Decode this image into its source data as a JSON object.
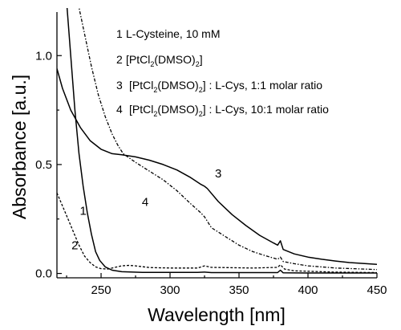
{
  "chart_data": {
    "type": "line",
    "xlabel": "Wavelength [nm]",
    "ylabel": "Absorbance [a.u.]",
    "xlim": [
      218,
      450
    ],
    "ylim": [
      -0.02,
      1.2
    ],
    "xticks": [
      "250",
      "300",
      "350",
      "400",
      "450"
    ],
    "yticks": [
      "0.0",
      "0.5",
      "1.0"
    ],
    "legend_position": "top-right",
    "legend": [
      {
        "num": "1",
        "text": "L-Cysteine, 10 mM"
      },
      {
        "num": "2",
        "prefix": "[PtCl",
        "sub": "2",
        "suffix": "(DMSO)",
        "sub2": "2",
        "tail": "]"
      },
      {
        "num": "3",
        "prefix": "[PtCl",
        "sub": "2",
        "suffix": "(DMSO)",
        "sub2": "2",
        "tail": "] : L-Cys, 1:1 molar ratio"
      },
      {
        "num": "4",
        "prefix": "[PtCl",
        "sub": "2",
        "suffix": "(DMSO)",
        "sub2": "2",
        "tail": "] : L-Cys, 10:1 molar ratio"
      }
    ],
    "series": [
      {
        "label": "1",
        "color": "#000000",
        "dash": "solid",
        "points": [
          [
            225,
            1.25
          ],
          [
            228,
            1.0
          ],
          [
            231,
            0.75
          ],
          [
            234,
            0.55
          ],
          [
            237,
            0.4
          ],
          [
            240,
            0.28
          ],
          [
            243,
            0.18
          ],
          [
            246,
            0.1
          ],
          [
            249,
            0.06
          ],
          [
            253,
            0.03
          ],
          [
            258,
            0.015
          ],
          [
            265,
            0.008
          ],
          [
            280,
            0.005
          ],
          [
            320,
            0.005
          ],
          [
            325,
            0.006
          ],
          [
            330,
            0.004
          ],
          [
            378,
            0.004
          ],
          [
            380,
            0.015
          ],
          [
            382,
            0.003
          ],
          [
            400,
            0.002
          ],
          [
            450,
            0.002
          ]
        ]
      },
      {
        "label": "2",
        "color": "#000000",
        "dash": "short",
        "points": [
          [
            218,
            0.37
          ],
          [
            222,
            0.31
          ],
          [
            226,
            0.25
          ],
          [
            230,
            0.19
          ],
          [
            234,
            0.13
          ],
          [
            238,
            0.08
          ],
          [
            242,
            0.05
          ],
          [
            246,
            0.03
          ],
          [
            250,
            0.022
          ],
          [
            255,
            0.02
          ],
          [
            260,
            0.028
          ],
          [
            265,
            0.035
          ],
          [
            270,
            0.037
          ],
          [
            275,
            0.035
          ],
          [
            285,
            0.027
          ],
          [
            300,
            0.025
          ],
          [
            320,
            0.025
          ],
          [
            325,
            0.035
          ],
          [
            330,
            0.028
          ],
          [
            360,
            0.025
          ],
          [
            378,
            0.028
          ],
          [
            380,
            0.04
          ],
          [
            383,
            0.02
          ],
          [
            390,
            0.012
          ],
          [
            420,
            0.006
          ],
          [
            450,
            0.004
          ]
        ]
      },
      {
        "label": "3",
        "color": "#000000",
        "dash": "solid",
        "points": [
          [
            218,
            0.94
          ],
          [
            222,
            0.85
          ],
          [
            228,
            0.75
          ],
          [
            235,
            0.67
          ],
          [
            242,
            0.61
          ],
          [
            250,
            0.57
          ],
          [
            258,
            0.55
          ],
          [
            265,
            0.545
          ],
          [
            275,
            0.535
          ],
          [
            285,
            0.52
          ],
          [
            295,
            0.5
          ],
          [
            305,
            0.475
          ],
          [
            315,
            0.44
          ],
          [
            322,
            0.41
          ],
          [
            325,
            0.4
          ],
          [
            327,
            0.39
          ],
          [
            335,
            0.33
          ],
          [
            345,
            0.27
          ],
          [
            355,
            0.22
          ],
          [
            365,
            0.175
          ],
          [
            375,
            0.14
          ],
          [
            378,
            0.13
          ],
          [
            380,
            0.15
          ],
          [
            382,
            0.11
          ],
          [
            390,
            0.09
          ],
          [
            400,
            0.075
          ],
          [
            410,
            0.065
          ],
          [
            420,
            0.057
          ],
          [
            430,
            0.05
          ],
          [
            440,
            0.046
          ],
          [
            450,
            0.042
          ]
        ]
      },
      {
        "label": "4",
        "color": "#000000",
        "dash": "dashdot",
        "points": [
          [
            233,
            1.25
          ],
          [
            238,
            1.1
          ],
          [
            243,
            0.95
          ],
          [
            248,
            0.82
          ],
          [
            253,
            0.72
          ],
          [
            258,
            0.64
          ],
          [
            262,
            0.59
          ],
          [
            266,
            0.55
          ],
          [
            275,
            0.51
          ],
          [
            285,
            0.47
          ],
          [
            295,
            0.43
          ],
          [
            305,
            0.38
          ],
          [
            315,
            0.32
          ],
          [
            322,
            0.28
          ],
          [
            325,
            0.26
          ],
          [
            330,
            0.21
          ],
          [
            340,
            0.17
          ],
          [
            350,
            0.13
          ],
          [
            360,
            0.1
          ],
          [
            370,
            0.08
          ],
          [
            378,
            0.065
          ],
          [
            380,
            0.075
          ],
          [
            382,
            0.055
          ],
          [
            390,
            0.045
          ],
          [
            400,
            0.035
          ],
          [
            420,
            0.025
          ],
          [
            450,
            0.018
          ]
        ]
      }
    ],
    "curve_labels": [
      {
        "text": "1",
        "x": 237,
        "y": 0.27
      },
      {
        "text": "2",
        "x": 231,
        "y": 0.11
      },
      {
        "text": "3",
        "x": 335,
        "y": 0.44
      },
      {
        "text": "4",
        "x": 282,
        "y": 0.31
      }
    ]
  }
}
